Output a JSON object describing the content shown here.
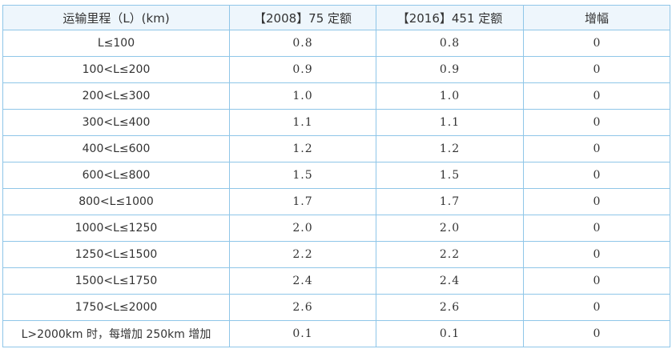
{
  "table": {
    "headers": [
      "运输里程（L）(km)",
      "【2008】75 定额",
      "【2016】451 定额",
      "增幅"
    ],
    "rows": [
      [
        "L≤100",
        "0.8",
        "0.8",
        "0"
      ],
      [
        "100<L≤200",
        "0.9",
        "0.9",
        "0"
      ],
      [
        "200<L≤300",
        "1.0",
        "1.0",
        "0"
      ],
      [
        "300<L≤400",
        "1.1",
        "1.1",
        "0"
      ],
      [
        "400<L≤600",
        "1.2",
        "1.2",
        "0"
      ],
      [
        "600<L≤800",
        "1.5",
        "1.5",
        "0"
      ],
      [
        "800<L≤1000",
        "1.7",
        "1.7",
        "0"
      ],
      [
        "1000<L≤1250",
        "2.0",
        "2.0",
        "0"
      ],
      [
        "1250<L≤1500",
        "2.2",
        "2.2",
        "0"
      ],
      [
        "1500<L≤1750",
        "2.4",
        "2.4",
        "0"
      ],
      [
        "1750<L≤2000",
        "2.6",
        "2.6",
        "0"
      ],
      [
        "L>2000km 时，每增加 250km 增加",
        "0.1",
        "0.1",
        "0"
      ]
    ]
  },
  "colors": {
    "border": "#8fc6e8",
    "header_bg": "#eef6fc",
    "text": "#333333"
  }
}
